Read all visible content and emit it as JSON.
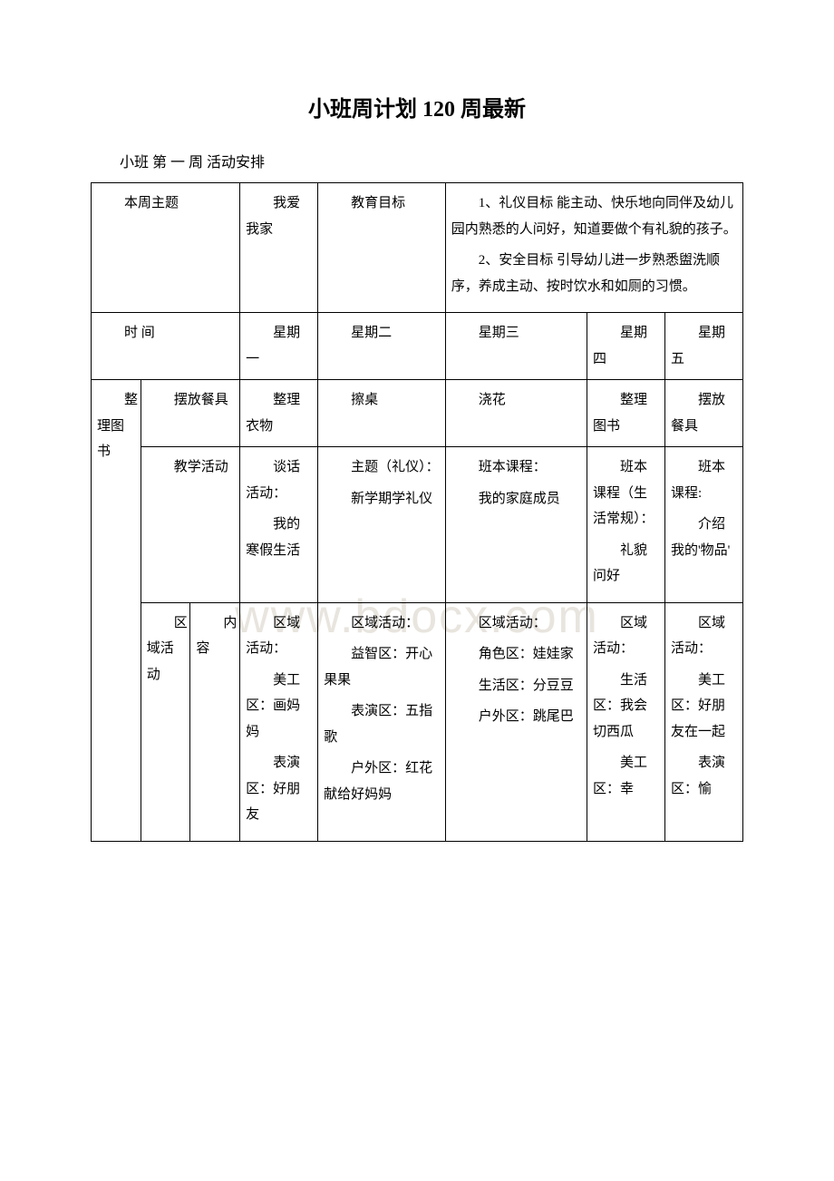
{
  "document": {
    "title": "小班周计划 120 周最新",
    "subtitle": "小班 第 一 周 活动安排",
    "watermark": "www.bdocx.com"
  },
  "header": {
    "theme_label": "本周主题",
    "theme_value": "我爱我家",
    "goal_label": "教育目标",
    "goal_value_1": "1、礼仪目标 能主动、快乐地向同伴及幼儿园内熟悉的人问好，知道要做个有礼貌的孩子。",
    "goal_value_2": "2、安全目标 引导幼儿进一步熟悉盥洗顺序，养成主动、按时饮水和如厕的习惯。"
  },
  "days": {
    "time_label": "时 间",
    "d1": "星期一",
    "d2": "星期二",
    "d3": "星期三",
    "d4": "星期四",
    "d5": "星期五"
  },
  "side_label": "整理图书",
  "row_task": {
    "label": "摆放餐具",
    "d1": "整理衣物",
    "d2": "擦桌",
    "d3": "浇花",
    "d4": "整理图书",
    "d5": "摆放餐具"
  },
  "row_teach": {
    "label": "教学活动",
    "d1a": "谈话活动：",
    "d1b": "我的寒假生活",
    "d2a": "主题（礼仪）：",
    "d2b": "新学期学礼仪",
    "d3a": "班本课程：",
    "d3b": "我的家庭成员",
    "d4a": "班本课程（生活常规）：",
    "d4b": "礼貌问好",
    "d5a": "班本课程:",
    "d5b": "介绍我的'物品'"
  },
  "row_area": {
    "label_outer": "区域活动",
    "label_inner": "内容",
    "d1a": "区域活动：",
    "d1b": "美工区：画妈妈",
    "d1c": "表演区：好朋友",
    "d2a": "区域活动：",
    "d2b": "益智区：开心果果",
    "d2c": "表演区：五指歌",
    "d2d": "户外区：红花献给好妈妈",
    "d3a": "区域活动：",
    "d3b": "角色区：娃娃家",
    "d3c": "生活区：分豆豆",
    "d3d": "户外区：跳尾巴",
    "d4a": "区域活动：",
    "d4b": "生活区：我会切西瓜",
    "d4c": "美工区：幸",
    "d5a": "区域活动：",
    "d5b": "美工区：好朋友在一起",
    "d5c": "表演区：愉"
  },
  "colors": {
    "text": "#000000",
    "border": "#000000",
    "background": "#ffffff",
    "watermark": "#e8e4de"
  }
}
